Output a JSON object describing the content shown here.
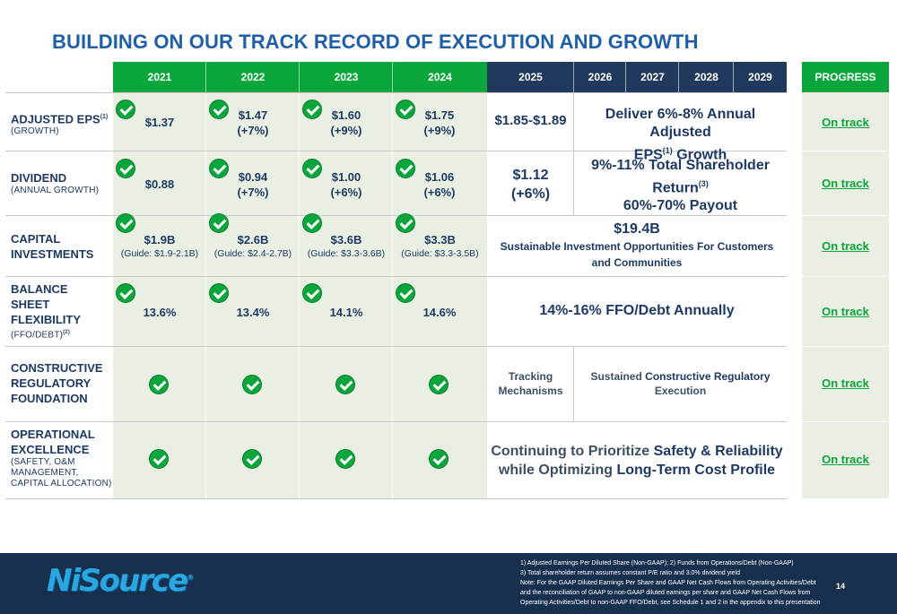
{
  "title": "BUILDING ON OUR TRACK RECORD OF EXECUTION AND GROWTH",
  "colors": {
    "green": "#0aa63c",
    "navy": "#1f3a5c",
    "title_blue": "#1f5fa8",
    "light_green_bg": "#e9f0e3"
  },
  "headers": {
    "years_actual": [
      "2021",
      "2022",
      "2023",
      "2024"
    ],
    "years_plan": [
      "2025",
      "2026",
      "2027",
      "2028",
      "2029"
    ],
    "progress": "PROGRESS"
  },
  "rows": {
    "eps": {
      "label": "ADJUSTED EPS",
      "label_sup": "(1)",
      "sub": "(GROWTH)",
      "values": [
        {
          "main": "$1.37",
          "growth": ""
        },
        {
          "main": "$1.47",
          "growth": "(+7%)"
        },
        {
          "main": "$1.60",
          "growth": "(+9%)"
        },
        {
          "main": "$1.75",
          "growth": "(+9%)"
        }
      ],
      "y2025": "$1.85-$1.89",
      "target_line1": "Deliver 6%-8% Annual Adjusted",
      "target_line2a": "EPS",
      "target_sup": "(1)",
      "target_line2b": " Growth",
      "progress": "On track"
    },
    "dividend": {
      "label": "DIVIDEND",
      "sub": "(ANNUAL GROWTH)",
      "values": [
        {
          "main": "$0.88",
          "growth": ""
        },
        {
          "main": "$0.94",
          "growth": "(+7%)"
        },
        {
          "main": "$1.00",
          "growth": "(+6%)"
        },
        {
          "main": "$1.06",
          "growth": "(+6%)"
        }
      ],
      "y2025_main": "$1.12",
      "y2025_growth": "(+6%)",
      "target_line1": "9%-11% Total Shareholder",
      "target_line2a": "Return",
      "target_sup": "(3)",
      "target_line3": "60%-70% Payout",
      "progress": "On track"
    },
    "capital": {
      "label_line1": "CAPITAL",
      "label_line2": "INVESTMENTS",
      "values": [
        {
          "main": "$1.9B",
          "guide": "(Guide: $1.9-2.1B)"
        },
        {
          "main": "$2.6B",
          "guide": "(Guide: $2.4-2.7B)"
        },
        {
          "main": "$3.6B",
          "guide": "(Guide: $3.3-3.6B)"
        },
        {
          "main": "$3.3B",
          "guide": "(Guide: $3.3-3.5B)"
        }
      ],
      "target_amount": "$19.4B",
      "target_line1": "Sustainable Investment Opportunities For Customers",
      "target_line2": "and Communities",
      "progress": "On track"
    },
    "balance": {
      "label_line1": "BALANCE",
      "label_line2": "SHEET",
      "label_line3": "FLEXIBILITY",
      "sub": "(FFO/DEBT)",
      "sub_sup": "(2)",
      "values": [
        "13.6%",
        "13.4%",
        "14.1%",
        "14.6%"
      ],
      "target": "14%-16% FFO/Debt Annually",
      "progress": "On track"
    },
    "regulatory": {
      "label_line1": "CONSTRUCTIVE",
      "label_line2": "REGULATORY",
      "label_line3": "FOUNDATION",
      "y2025_line1": "Tracking",
      "y2025_line2": "Mechanisms",
      "target_a": "Sustained ",
      "target_b": "Constructive Regulatory",
      "target_line2": "Execution",
      "progress": "On track"
    },
    "operational": {
      "label_line1": "OPERATIONAL",
      "label_line2": "EXCELLENCE",
      "sub_line1": "(SAFETY, O&M",
      "sub_line2": "MANAGEMENT,",
      "sub_line3": "CAPITAL ALLOCATION)",
      "target_line1a": "Continuing to Prioritize ",
      "target_line1b": "Safety & Reliability",
      "target_line2a": "while Optimizing ",
      "target_line2b": "Long-Term Cost Profile",
      "progress": "On track"
    }
  },
  "icons": {
    "check": "check-circle-icon"
  },
  "footer": {
    "logo": "NiSource",
    "logo_mark": "®",
    "note1": "1) Adjusted Earnings Per Diluted Share (Non-GAAP); 2) Funds from Operations/Debt (Non-GAAP)",
    "note2": "3) Total shareholder return assumes constant P/E ratio and 3.0% dividend yield",
    "note3": "Note: For the GAAP Diluted Earnings Per Share and GAAP Net Cash Flows from Operating Activities/Debt and the reconciliation of GAAP to non-GAAP diluted earnings per share and GAAP Net Cash Flows from Operating Activities/Debt to non-GAAP FFO/Debt, see Schedule 1 and 2 in the appendix to this presentation",
    "page": "14"
  }
}
